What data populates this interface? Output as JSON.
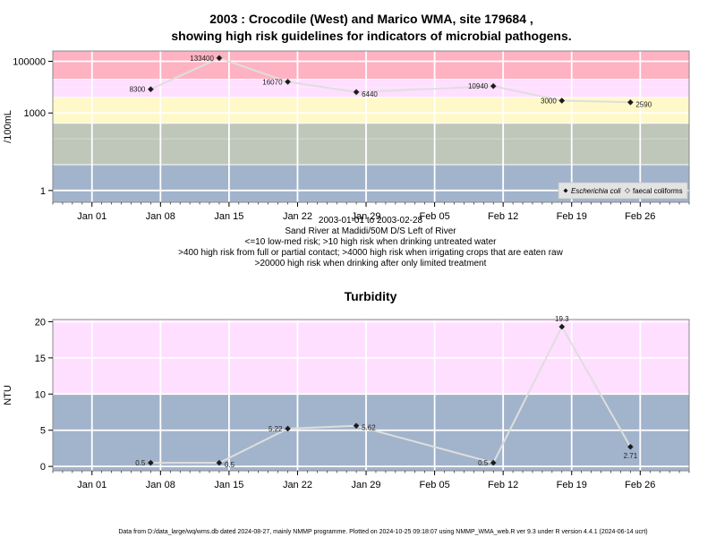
{
  "chart_data": [
    {
      "type": "line",
      "title_line1": "2003 : Crocodile (West) and Marico WMA, site 179684 ,",
      "title_line2": "showing high risk guidelines for indicators of microbial pathogens.",
      "ylabel": "/100mL",
      "yscale": "log",
      "ylim": [
        0.35,
        250000
      ],
      "xlim": [
        "2002-12-28",
        "2003-03-03"
      ],
      "x_ticks": [
        {
          "date": "2003-01-01",
          "label": "Jan 01"
        },
        {
          "date": "2003-01-08",
          "label": "Jan 08"
        },
        {
          "date": "2003-01-15",
          "label": "Jan 15"
        },
        {
          "date": "2003-01-22",
          "label": "Jan 22"
        },
        {
          "date": "2003-01-29",
          "label": "Jan 29"
        },
        {
          "date": "2003-02-05",
          "label": "Feb 05"
        },
        {
          "date": "2003-02-12",
          "label": "Feb 12"
        },
        {
          "date": "2003-02-19",
          "label": "Feb 19"
        },
        {
          "date": "2003-02-26",
          "label": "Feb 26"
        }
      ],
      "y_ticks": [
        {
          "value": 1,
          "label": "1"
        },
        {
          "value": 1000,
          "label": "1000"
        },
        {
          "value": 100000,
          "label": "100000"
        }
      ],
      "bands": [
        {
          "from": 0.35,
          "to": 10,
          "color": "#a2b4cb"
        },
        {
          "from": 10,
          "to": 400,
          "color": "#bfc7bb"
        },
        {
          "from": 400,
          "to": 4000,
          "color": "#fff8c8"
        },
        {
          "from": 4000,
          "to": 20000,
          "color": "#ffdfff"
        },
        {
          "from": 20000,
          "to": 250000,
          "color": "#ffb2c2"
        }
      ],
      "bands_inner_lines": [
        100,
        1000,
        10000
      ],
      "series": [
        {
          "name": "Escherichia coli",
          "points": [
            {
              "date": "2003-01-07",
              "value": 8300,
              "label": "8300",
              "label_side": "left"
            },
            {
              "date": "2003-01-14",
              "value": 133400,
              "label": "133400",
              "label_side": "left"
            },
            {
              "date": "2003-01-21",
              "value": 16070,
              "label": "16070",
              "label_side": "left"
            },
            {
              "date": "2003-01-28",
              "value": 6440,
              "label": "6440",
              "label_side": "right"
            },
            {
              "date": "2003-02-11",
              "value": 10940,
              "label": "10940",
              "label_side": "left"
            },
            {
              "date": "2003-02-18",
              "value": 3000,
              "label": "3000",
              "label_side": "left"
            },
            {
              "date": "2003-02-25",
              "value": 2590,
              "label": "2590",
              "label_side": "right"
            }
          ]
        }
      ],
      "legend": {
        "placement": "bottom-right",
        "entries": [
          {
            "label": "Escherichia coli",
            "italic": true,
            "marker": "filled-diamond"
          },
          {
            "label": "faecal coliforms",
            "italic": false,
            "marker": "open-diamond"
          }
        ]
      },
      "subtitle_lines": [
        "2003-01-01 to 2003-02-28",
        "Sand River at Madidi/50M D/S Left of River",
        "<=10 low-med risk; >10 high risk when drinking untreated water",
        ">400 high risk from full or partial contact; >4000 high risk when irrigating crops that are eaten raw",
        ">20000 high risk when drinking after only limited treatment"
      ]
    },
    {
      "type": "line",
      "title": "Turbidity",
      "ylabel": "NTU",
      "ylim": [
        -0.6,
        20.3
      ],
      "xlim": [
        "2002-12-28",
        "2003-03-03"
      ],
      "x_ticks": [
        {
          "date": "2003-01-01",
          "label": "Jan 01"
        },
        {
          "date": "2003-01-08",
          "label": "Jan 08"
        },
        {
          "date": "2003-01-15",
          "label": "Jan 15"
        },
        {
          "date": "2003-01-22",
          "label": "Jan 22"
        },
        {
          "date": "2003-01-29",
          "label": "Jan 29"
        },
        {
          "date": "2003-02-05",
          "label": "Feb 05"
        },
        {
          "date": "2003-02-12",
          "label": "Feb 12"
        },
        {
          "date": "2003-02-19",
          "label": "Feb 19"
        },
        {
          "date": "2003-02-26",
          "label": "Feb 26"
        }
      ],
      "y_ticks": [
        {
          "value": 0,
          "label": "0"
        },
        {
          "value": 5,
          "label": "5"
        },
        {
          "value": 10,
          "label": "10"
        },
        {
          "value": 15,
          "label": "15"
        },
        {
          "value": 20,
          "label": "20"
        }
      ],
      "bands": [
        {
          "from": -0.6,
          "to": 10,
          "color": "#a2b4cb"
        },
        {
          "from": 10,
          "to": 20.3,
          "color": "#ffdfff"
        }
      ],
      "series": [
        {
          "name": "Turbidity",
          "points": [
            {
              "date": "2003-01-07",
              "value": 0.5,
              "label": "0.5",
              "label_side": "left"
            },
            {
              "date": "2003-01-14",
              "value": 0.5,
              "label": "0.5",
              "label_side": "right"
            },
            {
              "date": "2003-01-21",
              "value": 5.22,
              "label": "5.22",
              "label_side": "left"
            },
            {
              "date": "2003-01-28",
              "value": 5.62,
              "label": "5.62",
              "label_side": "right"
            },
            {
              "date": "2003-02-11",
              "value": 0.5,
              "label": "0.5",
              "label_side": "left"
            },
            {
              "date": "2003-02-18",
              "value": 19.3,
              "label": "19.3",
              "label_side": "above"
            },
            {
              "date": "2003-02-25",
              "value": 2.71,
              "label": "2.71",
              "label_side": "below"
            }
          ]
        }
      ]
    }
  ],
  "colors": {
    "line": "#dedede",
    "marker": "#1a1a1a",
    "grid": "#ffffff",
    "frame": "#888888"
  },
  "footer": "Data from D:/data_large/wq/wms.db dated 2024-08-27, mainly NMMP programme. Plotted on 2024-10-25 09:18:07 using NMMP_WMA_web.R ver 9.3 under R version 4.4.1 (2024-06-14 ucrt)"
}
